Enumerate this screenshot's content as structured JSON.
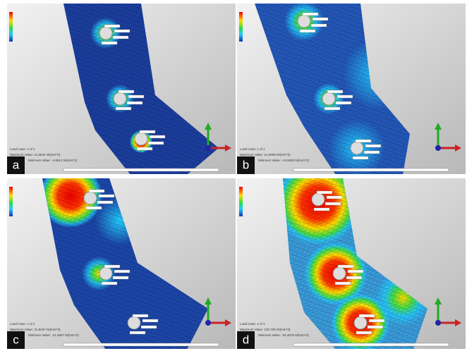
{
  "panels": [
    {
      "label": "a",
      "load_case": "Load Case:  1 of 1",
      "max_value": "Maximum Value: 11.8645 N/(mm^2)",
      "min_value": "Minimum Value: -4.8612 N/(mm^2)"
    },
    {
      "label": "b",
      "load_case": "Load Case:  1 of 1",
      "max_value": "Maximum Value: 14.0999 N/(mm^2)",
      "min_value": "Minimum Value: -4.61505 N/(mm^2)"
    },
    {
      "label": "c",
      "load_case": "Load Case:  1 of 1",
      "max_value": "Maximum Value: 31.9297 N/(mm^2)",
      "min_value": "Minimum Value: -21.4697 N/(mm^2)"
    },
    {
      "label": "d",
      "load_case": "Load Case:  1 of 1",
      "max_value": "Maximum Value: 103.709 N/(mm^2)",
      "min_value": "Minimum Value: -34.4675 N/(mm^2)"
    }
  ]
}
